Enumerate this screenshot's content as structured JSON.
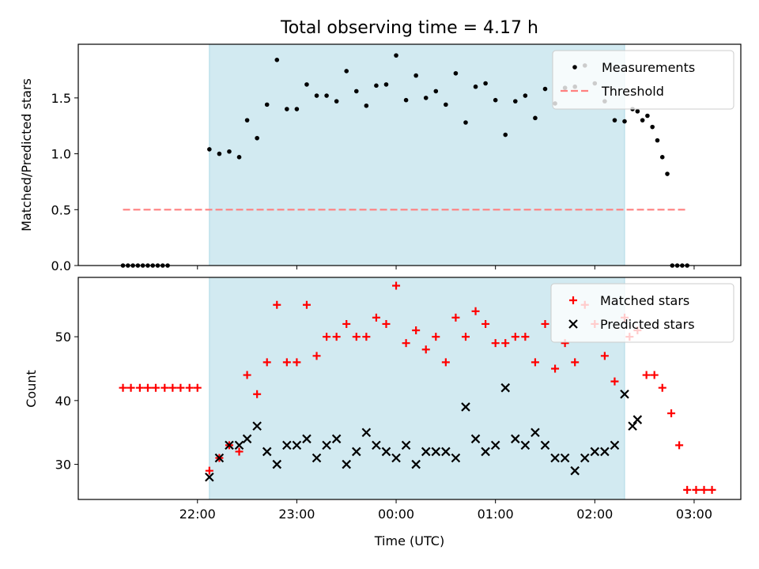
{
  "chart_data": {
    "type": "scatter",
    "title": "Total observing time = 4.17 h",
    "xlabel": "Time (UTC)",
    "x_tick_labels": [
      "22:00",
      "23:00",
      "00:00",
      "01:00",
      "02:00",
      "03:00"
    ],
    "x_range_hours": [
      20.8,
      27.47
    ],
    "observing_window_hours": [
      22.12,
      26.3
    ],
    "colors": {
      "window": "#add8e6",
      "measurements": "#000000",
      "threshold": "#ff8080",
      "matched": "#ff0000",
      "predicted": "#000000"
    },
    "panels": [
      {
        "ylabel": "Matched/Predicted stars",
        "ylim": [
          0,
          1.98
        ],
        "yticks": [
          "0.0",
          "0.5",
          "1.0",
          "1.5"
        ],
        "legend_position": "top-right",
        "threshold": {
          "name": "Threshold",
          "y": 0.5,
          "x": [
            21.25,
            26.92
          ]
        },
        "series": [
          {
            "name": "Measurements",
            "marker": "dot",
            "x": [
              21.25,
              21.3,
              21.35,
              21.4,
              21.45,
              21.5,
              21.55,
              21.6,
              21.65,
              21.7,
              22.12,
              22.22,
              22.32,
              22.42,
              22.5,
              22.6,
              22.7,
              22.8,
              22.9,
              23.0,
              23.1,
              23.2,
              23.3,
              23.4,
              23.5,
              23.6,
              23.7,
              23.8,
              23.9,
              24.0,
              24.1,
              24.2,
              24.3,
              24.4,
              24.5,
              24.6,
              24.7,
              24.8,
              24.9,
              25.0,
              25.1,
              25.2,
              25.3,
              25.4,
              25.5,
              25.6,
              25.7,
              25.8,
              25.9,
              26.0,
              26.1,
              26.2,
              26.3,
              26.38,
              26.43,
              26.48,
              26.53,
              26.58,
              26.63,
              26.68,
              26.73,
              26.78,
              26.83,
              26.88,
              26.93
            ],
            "y": [
              0,
              0,
              0,
              0,
              0,
              0,
              0,
              0,
              0,
              0,
              1.04,
              1.0,
              1.02,
              0.97,
              1.3,
              1.14,
              1.44,
              1.84,
              1.4,
              1.4,
              1.62,
              1.52,
              1.52,
              1.47,
              1.74,
              1.56,
              1.43,
              1.61,
              1.62,
              1.88,
              1.48,
              1.7,
              1.5,
              1.56,
              1.44,
              1.72,
              1.28,
              1.6,
              1.63,
              1.48,
              1.17,
              1.47,
              1.52,
              1.32,
              1.58,
              1.45,
              1.59,
              1.6,
              1.79,
              1.63,
              1.47,
              1.3,
              1.29,
              1.4,
              1.38,
              1.3,
              1.34,
              1.24,
              1.12,
              0.97,
              0.82,
              0,
              0,
              0,
              0
            ]
          }
        ]
      },
      {
        "ylabel": "Count",
        "ylim": [
          24.5,
          59.3
        ],
        "yticks": [
          "30",
          "40",
          "50"
        ],
        "legend_position": "top-right",
        "series": [
          {
            "name": "Matched stars",
            "marker": "plus",
            "x": [
              21.25,
              21.33,
              21.42,
              21.5,
              21.58,
              21.67,
              21.75,
              21.83,
              21.92,
              22.0,
              22.12,
              22.22,
              22.32,
              22.42,
              22.5,
              22.6,
              22.7,
              22.8,
              22.9,
              23.0,
              23.1,
              23.2,
              23.3,
              23.4,
              23.5,
              23.6,
              23.7,
              23.8,
              23.9,
              24.0,
              24.1,
              24.2,
              24.3,
              24.4,
              24.5,
              24.6,
              24.7,
              24.8,
              24.9,
              25.0,
              25.1,
              25.2,
              25.3,
              25.4,
              25.5,
              25.6,
              25.7,
              25.8,
              25.9,
              26.0,
              26.1,
              26.2,
              26.3,
              26.35,
              26.43,
              26.52,
              26.6,
              26.68,
              26.77,
              26.85,
              26.93,
              27.02,
              27.1,
              27.18
            ],
            "y": [
              42,
              42,
              42,
              42,
              42,
              42,
              42,
              42,
              42,
              42,
              29,
              31,
              33,
              32,
              44,
              41,
              46,
              55,
              46,
              46,
              55,
              47,
              50,
              50,
              52,
              50,
              50,
              53,
              52,
              58,
              49,
              51,
              48,
              50,
              46,
              53,
              50,
              54,
              52,
              49,
              49,
              50,
              50,
              46,
              52,
              45,
              49,
              46,
              55,
              52,
              47,
              43,
              53,
              50,
              51,
              44,
              44,
              42,
              38,
              33,
              26,
              26,
              26,
              26
            ]
          },
          {
            "name": "Predicted stars",
            "marker": "x",
            "x": [
              22.12,
              22.22,
              22.32,
              22.42,
              22.5,
              22.6,
              22.7,
              22.8,
              22.9,
              23.0,
              23.1,
              23.2,
              23.3,
              23.4,
              23.5,
              23.6,
              23.7,
              23.8,
              23.9,
              24.0,
              24.1,
              24.2,
              24.3,
              24.4,
              24.5,
              24.6,
              24.7,
              24.8,
              24.9,
              25.0,
              25.1,
              25.2,
              25.3,
              25.4,
              25.5,
              25.6,
              25.7,
              25.8,
              25.9,
              26.0,
              26.1,
              26.2,
              26.3,
              26.38,
              26.43
            ],
            "y": [
              28,
              31,
              33,
              33,
              34,
              36,
              32,
              30,
              33,
              33,
              34,
              31,
              33,
              34,
              30,
              32,
              35,
              33,
              32,
              31,
              33,
              30,
              32,
              32,
              32,
              31,
              39,
              34,
              32,
              33,
              42,
              34,
              33,
              35,
              33,
              31,
              31,
              29,
              31,
              32,
              32,
              33,
              41,
              36,
              37
            ]
          }
        ]
      }
    ]
  }
}
